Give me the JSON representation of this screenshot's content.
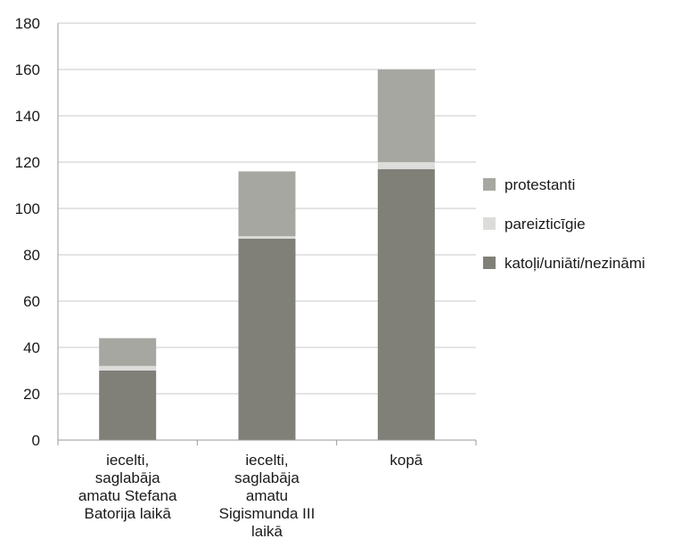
{
  "chart_data": {
    "type": "bar",
    "stacked": true,
    "categories": [
      [
        "iecelti,",
        "saglabāja",
        "amatu Stefana",
        "Batorija laikā"
      ],
      [
        "iecelti,",
        "saglabāja",
        "amatu",
        "Sigismunda III",
        "laikā"
      ],
      [
        "kopā"
      ]
    ],
    "series": [
      {
        "name": "katoļi/uniāti/nezināmi",
        "values": [
          30,
          87,
          117
        ],
        "color": "#807f78"
      },
      {
        "name": "pareizticīgie",
        "values": [
          2,
          1,
          3
        ],
        "color": "#dcdcda"
      },
      {
        "name": "protestanti",
        "values": [
          12,
          28,
          40
        ],
        "color": "#a7a7a1"
      }
    ],
    "legend_order": [
      "protestanti",
      "pareizticīgie",
      "katoļi/uniāti/nezināmi"
    ],
    "ylim": [
      0,
      180
    ],
    "yticks": [
      "0",
      "20",
      "40",
      "60",
      "80",
      "100",
      "120",
      "140",
      "160",
      "180"
    ],
    "grid": true,
    "legend_position": "right",
    "title": "",
    "xlabel": "",
    "ylabel": ""
  }
}
